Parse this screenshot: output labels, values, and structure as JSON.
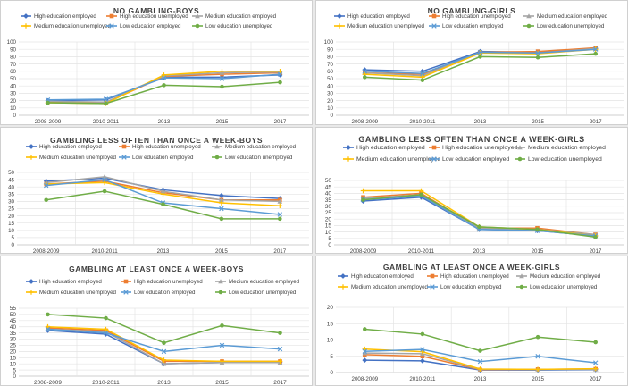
{
  "chart_data": [
    {
      "type": "line",
      "title": "NO GAMBLING-BOYS",
      "categories": [
        "2008-2009",
        "2010-2011",
        "2013",
        "2015",
        "2017"
      ],
      "ylim": [
        0,
        100
      ],
      "yticks": [
        0,
        10,
        20,
        30,
        40,
        50,
        60,
        70,
        80,
        90,
        100
      ],
      "series": [
        {
          "name": "High education employed",
          "values": [
            20,
            21,
            52,
            52,
            55
          ]
        },
        {
          "name": "High education unemployed",
          "values": [
            18,
            17,
            53,
            56,
            58
          ]
        },
        {
          "name": "Medium education employed",
          "values": [
            19,
            18,
            54,
            58,
            59
          ]
        },
        {
          "name": "Medium education unemployed",
          "values": [
            17,
            16,
            55,
            60,
            60
          ]
        },
        {
          "name": "Low education employed",
          "values": [
            21,
            22,
            51,
            50,
            56
          ]
        },
        {
          "name": "Low education unemployed",
          "values": [
            17,
            16,
            41,
            39,
            45
          ]
        }
      ]
    },
    {
      "type": "line",
      "title": "NO GAMBLING-GIRLS",
      "categories": [
        "2008-2009",
        "2010-2011",
        "2013",
        "2015",
        "2017"
      ],
      "ylim": [
        0,
        100
      ],
      "yticks": [
        0,
        10,
        20,
        30,
        40,
        50,
        60,
        70,
        80,
        90,
        100
      ],
      "series": [
        {
          "name": "High education employed",
          "values": [
            62,
            60,
            87,
            86,
            91
          ]
        },
        {
          "name": "High education unemployed",
          "values": [
            58,
            56,
            86,
            87,
            92
          ]
        },
        {
          "name": "Medium education employed",
          "values": [
            58,
            54,
            86,
            85,
            91
          ]
        },
        {
          "name": "Medium education unemployed",
          "values": [
            56,
            52,
            85,
            84,
            90
          ]
        },
        {
          "name": "Low education employed",
          "values": [
            60,
            57,
            86,
            85,
            90
          ]
        },
        {
          "name": "Low education unemployed",
          "values": [
            52,
            48,
            80,
            79,
            84
          ]
        }
      ]
    },
    {
      "type": "line",
      "title": "GAMBLING LESS OFTEN THAN ONCE A WEEK-BOYS",
      "categories": [
        "2008-2009",
        "2010-2011",
        "2013",
        "2015",
        "2017"
      ],
      "ylim": [
        0,
        50
      ],
      "yticks": [
        0,
        5,
        10,
        15,
        20,
        25,
        30,
        35,
        40,
        45,
        50
      ],
      "series": [
        {
          "name": "High education employed",
          "values": [
            44,
            46,
            38,
            34,
            32
          ]
        },
        {
          "name": "High education unemployed",
          "values": [
            42,
            44,
            36,
            31,
            31
          ]
        },
        {
          "name": "Medium education employed",
          "values": [
            43,
            47,
            37,
            31,
            30
          ]
        },
        {
          "name": "Medium education unemployed",
          "values": [
            42,
            43,
            35,
            29,
            27
          ]
        },
        {
          "name": "Low education employed",
          "values": [
            41,
            45,
            29,
            25,
            21
          ]
        },
        {
          "name": "Low education unemployed",
          "values": [
            31,
            37,
            28,
            18,
            18
          ]
        }
      ]
    },
    {
      "type": "line",
      "title": "GAMBLING LESS OFTEN THAN ONCE A WEEK-GIRLS",
      "categories": [
        "2008-2009",
        "2010-2011",
        "2013",
        "2015",
        "2017"
      ],
      "ylim": [
        0,
        50
      ],
      "yticks": [
        0,
        5,
        10,
        15,
        20,
        25,
        30,
        35,
        40,
        45,
        50
      ],
      "series": [
        {
          "name": "High education employed",
          "values": [
            34,
            37,
            12,
            11,
            7
          ]
        },
        {
          "name": "High education unemployed",
          "values": [
            37,
            40,
            13,
            13,
            8
          ]
        },
        {
          "name": "Medium education employed",
          "values": [
            36,
            39,
            13,
            12,
            8
          ]
        },
        {
          "name": "Medium education unemployed",
          "values": [
            42,
            42,
            14,
            12,
            7
          ]
        },
        {
          "name": "Low education employed",
          "values": [
            35,
            38,
            12,
            11,
            7
          ]
        },
        {
          "name": "Low education unemployed",
          "values": [
            35,
            39,
            14,
            12,
            6
          ]
        }
      ]
    },
    {
      "type": "line",
      "title": "GAMBLING AT LEAST ONCE A WEEK-BOYS",
      "categories": [
        "2008-2009",
        "2010-2011",
        "2013",
        "2015",
        "2017"
      ],
      "ylim": [
        0,
        55
      ],
      "yticks": [
        0,
        5,
        10,
        15,
        20,
        25,
        30,
        35,
        40,
        45,
        50,
        55
      ],
      "series": [
        {
          "name": "High education employed",
          "values": [
            37,
            34,
            10,
            11,
            11
          ]
        },
        {
          "name": "High education unemployed",
          "values": [
            39,
            37,
            12,
            12,
            12
          ]
        },
        {
          "name": "Medium education employed",
          "values": [
            38,
            36,
            10,
            11,
            11
          ]
        },
        {
          "name": "Medium education unemployed",
          "values": [
            40,
            38,
            13,
            12,
            12
          ]
        },
        {
          "name": "Low education employed",
          "values": [
            38,
            35,
            20,
            25,
            22
          ]
        },
        {
          "name": "Low education unemployed",
          "values": [
            50,
            47,
            27,
            41,
            35
          ]
        }
      ]
    },
    {
      "type": "line",
      "title": "GAMBLING AT LEAST ONCE A WEEK-GIRLS",
      "categories": [
        "2008-2009",
        "2010-2011",
        "2013",
        "2015",
        "2017"
      ],
      "ylim": [
        0,
        20
      ],
      "yticks": [
        0,
        5,
        10,
        15,
        20
      ],
      "series": [
        {
          "name": "High education employed",
          "values": [
            3.8,
            3.6,
            0.8,
            0.8,
            0.9
          ]
        },
        {
          "name": "High education unemployed",
          "values": [
            5.5,
            5.0,
            0.9,
            1.0,
            1.1
          ]
        },
        {
          "name": "Medium education employed",
          "values": [
            6.0,
            5.8,
            1.0,
            1.0,
            1.0
          ]
        },
        {
          "name": "Medium education unemployed",
          "values": [
            7.2,
            6.4,
            1.1,
            1.0,
            1.2
          ]
        },
        {
          "name": "Low education employed",
          "values": [
            6.5,
            7.1,
            3.4,
            5.0,
            3.0
          ]
        },
        {
          "name": "Low education unemployed",
          "values": [
            13.3,
            11.8,
            6.7,
            10.9,
            9.3
          ]
        }
      ]
    }
  ],
  "colors": [
    "#4472c4",
    "#ed7d31",
    "#a5a5a5",
    "#ffc000",
    "#5b9bd5",
    "#70ad47"
  ],
  "markers": [
    "diamond",
    "square",
    "triangle",
    "cross",
    "x",
    "circle"
  ]
}
